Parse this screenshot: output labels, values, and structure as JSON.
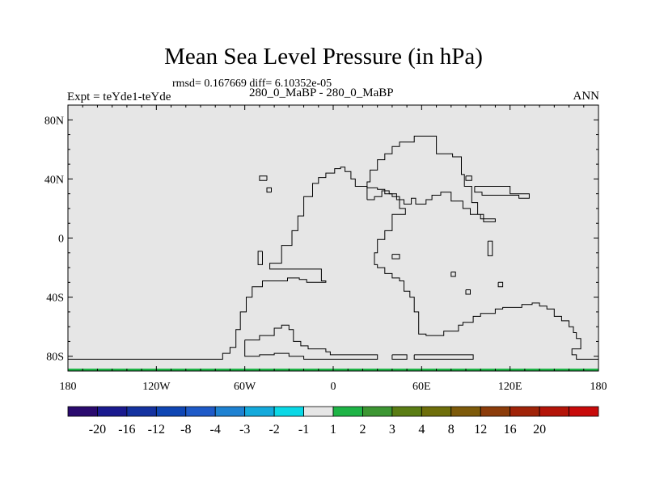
{
  "plot": {
    "title": "Mean Sea Level Pressure (in hPa)",
    "stats": "rmsd= 0.167669 diff= 6.10352e-05",
    "subtitle": "280_0_MaBP - 280_0_MaBP",
    "left_label": "Expt = teYde1-teYde",
    "right_label": "ANN"
  },
  "chart_data": {
    "type": "heatmap",
    "field": "Mean Sea Level Pressure difference (hPa)",
    "xlim": [
      -180,
      180
    ],
    "ylim": [
      -90,
      90
    ],
    "field_value_range": [
      -1,
      1
    ],
    "x_ticks": [
      {
        "value": -180,
        "label": "180"
      },
      {
        "value": -120,
        "label": "120W"
      },
      {
        "value": -60,
        "label": "60W"
      },
      {
        "value": 0,
        "label": "0"
      },
      {
        "value": 60,
        "label": "60E"
      },
      {
        "value": 120,
        "label": "120E"
      },
      {
        "value": 180,
        "label": "180"
      }
    ],
    "y_ticks": [
      {
        "value": 80,
        "label": "80N"
      },
      {
        "value": 40,
        "label": "40N"
      },
      {
        "value": 0,
        "label": "0"
      },
      {
        "value": -40,
        "label": "40S"
      },
      {
        "value": -80,
        "label": "80S"
      }
    ],
    "colorbar": {
      "colors": [
        "#2a0a6e",
        "#1a1a8f",
        "#1432a0",
        "#0f46b4",
        "#1e5ac8",
        "#1e82d2",
        "#14aadc",
        "#0ad8e6",
        "#e6e6e6",
        "#1eb446",
        "#3c9632",
        "#5a7d14",
        "#6e6e0a",
        "#7d5a0a",
        "#8c3c0a",
        "#a02308",
        "#b41408",
        "#c80a0a"
      ],
      "labels": [
        "-20",
        "-16",
        "-12",
        "-8",
        "-4",
        "-3",
        "-2",
        "-1",
        "1",
        "2",
        "3",
        "4",
        "8",
        "12",
        "16",
        "20"
      ]
    },
    "coastline": [
      [
        [
          -180,
          -82
        ],
        [
          -75,
          -82
        ],
        [
          -75,
          -78
        ],
        [
          -70,
          -78
        ],
        [
          -70,
          -74
        ],
        [
          -66,
          -74
        ],
        [
          -66,
          -62
        ],
        [
          -63,
          -62
        ],
        [
          -63,
          -50
        ],
        [
          -59,
          -50
        ],
        [
          -59,
          -40
        ],
        [
          -55,
          -40
        ],
        [
          -55,
          -33
        ],
        [
          -48,
          -33
        ],
        [
          -48,
          -29
        ],
        [
          -31,
          -29
        ],
        [
          -31,
          -27
        ],
        [
          -23,
          -27
        ],
        [
          -23,
          -28
        ],
        [
          -18,
          -28
        ],
        [
          -18,
          -30
        ],
        [
          -5,
          -30
        ],
        [
          -5,
          -29
        ],
        [
          -8,
          -29
        ],
        [
          -8,
          -21
        ],
        [
          -43,
          -21
        ],
        [
          -43,
          -17
        ],
        [
          -35,
          -17
        ],
        [
          -35,
          -5
        ],
        [
          -28,
          -5
        ],
        [
          -28,
          5
        ],
        [
          -24,
          5
        ],
        [
          -24,
          15
        ],
        [
          -20,
          15
        ],
        [
          -20,
          28
        ],
        [
          -14,
          28
        ],
        [
          -14,
          37
        ],
        [
          -10,
          37
        ],
        [
          -10,
          41
        ],
        [
          -5,
          41
        ],
        [
          -5,
          44
        ],
        [
          1,
          44
        ],
        [
          1,
          47
        ],
        [
          5,
          47
        ],
        [
          5,
          48
        ],
        [
          8,
          48
        ],
        [
          8,
          45
        ],
        [
          12,
          45
        ],
        [
          12,
          40
        ],
        [
          15,
          40
        ],
        [
          15,
          35
        ],
        [
          23,
          35
        ],
        [
          23,
          34
        ],
        [
          30,
          34
        ],
        [
          30,
          33
        ],
        [
          35,
          33
        ],
        [
          35,
          30
        ],
        [
          40,
          30
        ],
        [
          40,
          28
        ],
        [
          45,
          28
        ],
        [
          45,
          20
        ],
        [
          49,
          20
        ],
        [
          49,
          16
        ],
        [
          40,
          16
        ],
        [
          40,
          5
        ],
        [
          35,
          5
        ],
        [
          35,
          -1
        ],
        [
          30,
          -1
        ],
        [
          30,
          -10
        ],
        [
          28,
          -10
        ],
        [
          28,
          -18
        ],
        [
          30,
          -18
        ],
        [
          30,
          -20
        ],
        [
          35,
          -20
        ],
        [
          35,
          -24
        ],
        [
          40,
          -24
        ],
        [
          40,
          -27
        ],
        [
          45,
          -27
        ],
        [
          45,
          -29
        ],
        [
          48,
          -29
        ],
        [
          48,
          -36
        ],
        [
          52,
          -36
        ],
        [
          52,
          -40
        ],
        [
          55,
          -40
        ],
        [
          55,
          -50
        ],
        [
          58,
          -50
        ],
        [
          58,
          -65
        ],
        [
          63,
          -65
        ],
        [
          63,
          -66
        ],
        [
          75,
          -66
        ],
        [
          75,
          -63
        ],
        [
          85,
          -63
        ],
        [
          85,
          -59
        ],
        [
          88,
          -59
        ],
        [
          88,
          -57
        ],
        [
          95,
          -57
        ],
        [
          95,
          -53
        ],
        [
          100,
          -53
        ],
        [
          100,
          -51
        ],
        [
          110,
          -51
        ],
        [
          110,
          -48
        ],
        [
          115,
          -48
        ],
        [
          115,
          -47
        ],
        [
          128,
          -47
        ],
        [
          128,
          -45
        ],
        [
          135,
          -45
        ],
        [
          135,
          -44
        ],
        [
          140,
          -44
        ],
        [
          140,
          -46
        ],
        [
          145,
          -46
        ],
        [
          145,
          -48
        ],
        [
          150,
          -48
        ],
        [
          150,
          -53
        ],
        [
          155,
          -53
        ],
        [
          155,
          -56
        ],
        [
          160,
          -56
        ],
        [
          160,
          -60
        ],
        [
          163,
          -60
        ],
        [
          163,
          -64
        ],
        [
          165,
          -64
        ],
        [
          165,
          -68
        ],
        [
          168,
          -68
        ],
        [
          168,
          -75
        ],
        [
          162,
          -75
        ],
        [
          162,
          -79
        ],
        [
          165,
          -79
        ],
        [
          165,
          -82
        ],
        [
          180,
          -82
        ]
      ],
      [
        [
          -60,
          -69
        ],
        [
          -50,
          -69
        ],
        [
          -50,
          -66
        ],
        [
          -40,
          -66
        ],
        [
          -40,
          -61
        ],
        [
          -35,
          -61
        ],
        [
          -35,
          -59
        ],
        [
          -30,
          -59
        ],
        [
          -30,
          -62
        ],
        [
          -27,
          -62
        ],
        [
          -27,
          -70
        ],
        [
          -22,
          -70
        ],
        [
          -22,
          -73
        ],
        [
          -17,
          -73
        ],
        [
          -17,
          -75
        ],
        [
          -5,
          -75
        ],
        [
          -5,
          -77
        ],
        [
          -2,
          -77
        ],
        [
          -2,
          -79
        ],
        [
          30,
          -79
        ],
        [
          30,
          -82
        ],
        [
          -20,
          -82
        ],
        [
          -20,
          -80
        ],
        [
          -30,
          -80
        ],
        [
          -30,
          -78
        ],
        [
          -40,
          -78
        ],
        [
          -40,
          -79
        ],
        [
          -50,
          -79
        ],
        [
          -50,
          -80
        ],
        [
          -60,
          -80
        ],
        [
          -60,
          -69
        ]
      ],
      [
        [
          40,
          -79
        ],
        [
          50,
          -79
        ],
        [
          50,
          -82
        ],
        [
          40,
          -82
        ],
        [
          40,
          -79
        ]
      ],
      [
        [
          55,
          -79
        ],
        [
          95,
          -79
        ],
        [
          95,
          -82
        ],
        [
          55,
          -82
        ],
        [
          55,
          -79
        ]
      ],
      [
        [
          23,
          26
        ],
        [
          28,
          26
        ],
        [
          28,
          28
        ],
        [
          33,
          28
        ],
        [
          33,
          32
        ],
        [
          38,
          32
        ],
        [
          38,
          30
        ],
        [
          43,
          30
        ],
        [
          43,
          26
        ],
        [
          48,
          26
        ],
        [
          48,
          23
        ],
        [
          53,
          23
        ],
        [
          53,
          27
        ],
        [
          56,
          27
        ],
        [
          56,
          23
        ],
        [
          63,
          23
        ],
        [
          63,
          26
        ],
        [
          67,
          26
        ],
        [
          67,
          29
        ],
        [
          73,
          29
        ],
        [
          73,
          31
        ],
        [
          80,
          31
        ],
        [
          80,
          25
        ],
        [
          88,
          25
        ],
        [
          88,
          20
        ],
        [
          93,
          20
        ],
        [
          93,
          16
        ],
        [
          100,
          16
        ],
        [
          100,
          13
        ],
        [
          110,
          13
        ],
        [
          110,
          11
        ],
        [
          102,
          11
        ],
        [
          102,
          16
        ],
        [
          98,
          16
        ],
        [
          98,
          24
        ],
        [
          94,
          24
        ],
        [
          94,
          35
        ],
        [
          89,
          35
        ],
        [
          89,
          43
        ],
        [
          87,
          43
        ],
        [
          87,
          55
        ],
        [
          81,
          55
        ],
        [
          81,
          57
        ],
        [
          70,
          57
        ],
        [
          70,
          69
        ],
        [
          55,
          69
        ],
        [
          55,
          65
        ],
        [
          45,
          65
        ],
        [
          45,
          62
        ],
        [
          40,
          62
        ],
        [
          40,
          57
        ],
        [
          35,
          57
        ],
        [
          35,
          53
        ],
        [
          30,
          53
        ],
        [
          30,
          46
        ],
        [
          25,
          46
        ],
        [
          25,
          38
        ],
        [
          23,
          38
        ],
        [
          23,
          26
        ]
      ],
      [
        [
          -45,
          39
        ],
        [
          -50,
          39
        ],
        [
          -50,
          42
        ],
        [
          -45,
          42
        ],
        [
          -45,
          39
        ]
      ],
      [
        [
          -42,
          31
        ],
        [
          -45,
          31
        ],
        [
          -45,
          34
        ],
        [
          -42,
          34
        ],
        [
          -42,
          31
        ]
      ],
      [
        [
          -48,
          -9
        ],
        [
          -51,
          -9
        ],
        [
          -51,
          -18
        ],
        [
          -48,
          -18
        ],
        [
          -48,
          -9
        ]
      ],
      [
        [
          96,
          35
        ],
        [
          96,
          31
        ],
        [
          101,
          31
        ],
        [
          101,
          29
        ],
        [
          126,
          29
        ],
        [
          126,
          27
        ],
        [
          133,
          27
        ],
        [
          133,
          30
        ],
        [
          120,
          30
        ],
        [
          120,
          35
        ],
        [
          96,
          35
        ]
      ],
      [
        [
          90,
          42
        ],
        [
          90,
          39
        ],
        [
          94,
          39
        ],
        [
          94,
          42
        ],
        [
          90,
          42
        ]
      ],
      [
        [
          105,
          -2
        ],
        [
          108,
          -2
        ],
        [
          108,
          -12
        ],
        [
          105,
          -12
        ],
        [
          105,
          -2
        ]
      ],
      [
        [
          40,
          -11
        ],
        [
          45,
          -11
        ],
        [
          45,
          -14
        ],
        [
          40,
          -14
        ],
        [
          40,
          -11
        ]
      ],
      [
        [
          80,
          -23
        ],
        [
          83,
          -23
        ],
        [
          83,
          -26
        ],
        [
          80,
          -26
        ],
        [
          80,
          -23
        ]
      ],
      [
        [
          90,
          -35
        ],
        [
          93,
          -35
        ],
        [
          93,
          -38
        ],
        [
          90,
          -38
        ],
        [
          90,
          -35
        ]
      ],
      [
        [
          112,
          -30
        ],
        [
          115,
          -30
        ],
        [
          115,
          -33
        ],
        [
          112,
          -33
        ],
        [
          112,
          -30
        ]
      ]
    ]
  }
}
